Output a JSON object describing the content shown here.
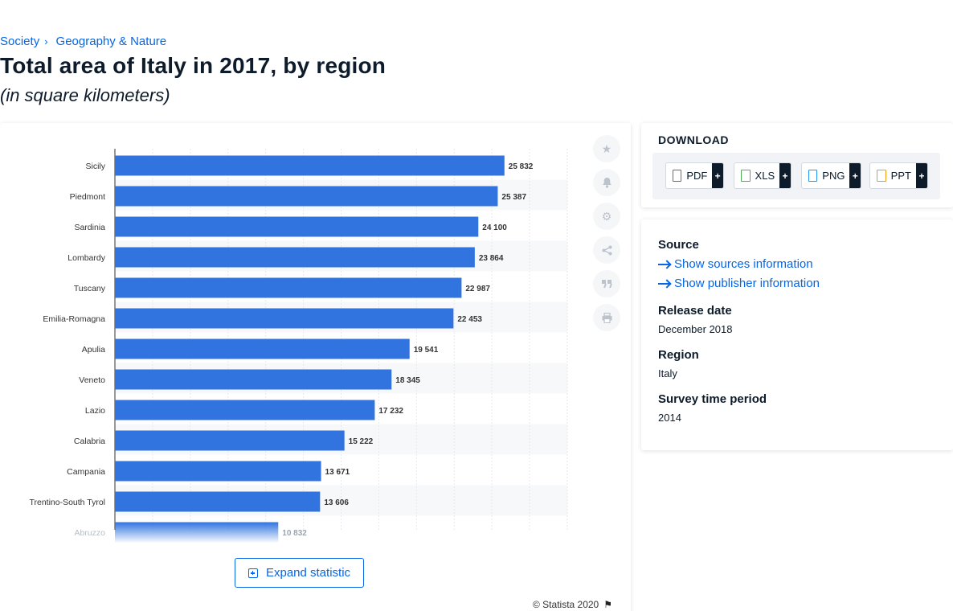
{
  "breadcrumb": {
    "items": [
      "Society",
      "Geography & Nature"
    ]
  },
  "page": {
    "title": "Total area of Italy in 2017, by region",
    "subtitle": "(in square kilometers)"
  },
  "chart_data": {
    "type": "bar",
    "orientation": "horizontal",
    "categories": [
      "Sicily",
      "Piedmont",
      "Sardinia",
      "Lombardy",
      "Tuscany",
      "Emilia-Romagna",
      "Apulia",
      "Veneto",
      "Lazio",
      "Calabria",
      "Campania",
      "Trentino-South Tyrol",
      "Abruzzo"
    ],
    "values": [
      25832,
      25387,
      24100,
      23864,
      22987,
      22453,
      19541,
      18345,
      17232,
      15222,
      13671,
      13606,
      10832
    ],
    "value_labels": [
      "25 832",
      "25 387",
      "24 100",
      "23 864",
      "22 987",
      "22 453",
      "19 541",
      "18 345",
      "17 232",
      "15 222",
      "13 671",
      "13 606",
      "10 832"
    ],
    "xlim": [
      0,
      30000
    ],
    "grid": true,
    "bar_color": "#3174e0",
    "faded_last_bar": true
  },
  "tools": {
    "icons": [
      "star-icon",
      "bell-icon",
      "gear-icon",
      "share-icon",
      "quote-icon",
      "print-icon"
    ]
  },
  "expand": {
    "label": "Expand statistic"
  },
  "copyright": {
    "text": "© Statista 2020"
  },
  "download": {
    "title": "DOWNLOAD",
    "buttons": [
      {
        "label": "PDF",
        "add": "+",
        "color": "#e23b3b"
      },
      {
        "label": "XLS",
        "add": "+",
        "color": "#4caf50"
      },
      {
        "label": "PNG",
        "add": "+",
        "color": "#2196f3"
      },
      {
        "label": "PPT",
        "add": "+",
        "color": "#f39c12"
      }
    ]
  },
  "info": {
    "source_heading": "Source",
    "show_sources": "Show sources information",
    "show_publisher": "Show publisher information",
    "release_heading": "Release date",
    "release_value": "December 2018",
    "region_heading": "Region",
    "region_value": "Italy",
    "survey_heading": "Survey time period",
    "survey_value": "2014"
  },
  "colors": {
    "accent": "#0666e5",
    "dark": "#0d1b2a"
  }
}
